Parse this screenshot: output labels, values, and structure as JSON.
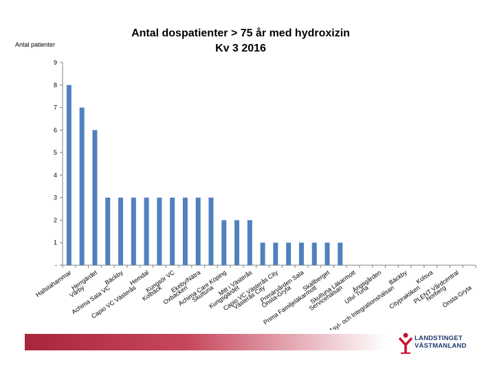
{
  "chart_data": {
    "type": "bar",
    "title": "Antal dospatienter > 75 år med hydroxizin",
    "subtitle": "Kv 3 2016",
    "ylabel": "Antal patienter",
    "xlabel": "",
    "ylim": [
      0,
      9
    ],
    "yticks": [
      "-",
      "1",
      "2",
      "3",
      "4",
      "5",
      "6",
      "7",
      "8",
      "9"
    ],
    "grid": false,
    "bar_color": "#4f81bd",
    "categories": [
      "Hallstahammar",
      "Vårby",
      "Herrgärdet",
      "Achima Sala VC",
      "Bäckby",
      "Capio VC Västerås",
      "Hemdal",
      "Kolbäck",
      "Kungsör VC",
      "Oxbacken",
      "Ekeby/Nätra",
      "Skultuna",
      "Achima Care Köping",
      "Kungsgärdet",
      "Mitt i Västerås",
      "Västerås City",
      "Capio VC Västerås City",
      "Önsta-Gryta",
      "Primärvården Sala",
      "Prima Familjeläkarmott",
      "Skallberget",
      "Servicehälsan",
      "Skultuna Läkarmott",
      "Ullvi Tuna",
      "Ängsgården",
      "Asyl- och Integrationshälsan",
      "Bäckby",
      "Citypraktiken",
      "Kolsva",
      "Norberg",
      "PLENT Vårdcentral",
      "Önsta-Gryta"
    ],
    "values": [
      8,
      7,
      6,
      3,
      3,
      3,
      3,
      3,
      3,
      3,
      3,
      3,
      2,
      2,
      2,
      1,
      1,
      1,
      1,
      1,
      1,
      1,
      0,
      0,
      0,
      0,
      0,
      0,
      0,
      0,
      0,
      0
    ]
  },
  "logo": {
    "line1": "LANDSTINGET",
    "line2": "VÄSTMANLAND",
    "color": "#1e3a6e",
    "accent": "#c8102e"
  }
}
